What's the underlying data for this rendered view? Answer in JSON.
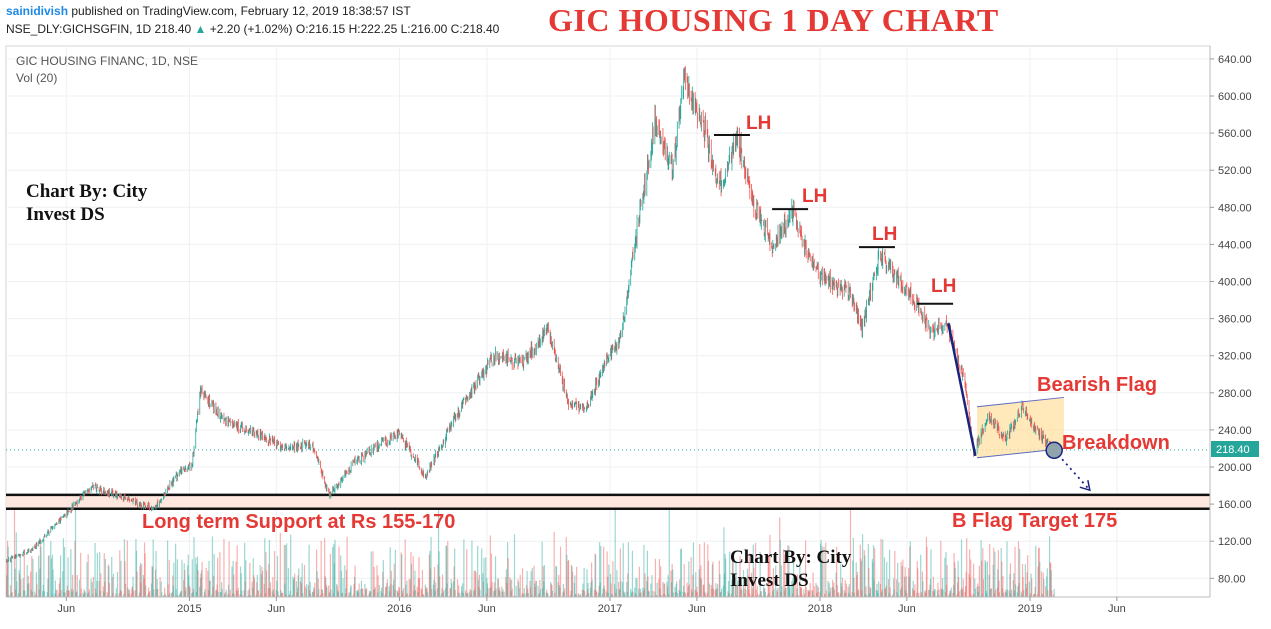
{
  "header": {
    "user": "sainidivish",
    "published_text": "published on TradingView.com, February 12, 2019 18:38:57 IST",
    "symbol": "NSE_DLY:GICHSGFIN, 1D",
    "last": "218.40",
    "change": "+2.20 (+1.02%)",
    "ohlc": "O:216.15 H:222.25 L:216.00 C:218.40"
  },
  "main_title": "GIC HOUSING 1 DAY CHART",
  "legend": {
    "instrument": "GIC HOUSING FINANC, 1D, NSE",
    "volume": "Vol (20)"
  },
  "last_price_label": "218.40",
  "annotations": {
    "credit_top_line1": "Chart By: City",
    "credit_top_line2": "Invest DS",
    "credit_bottom_line1": "Chart By: City",
    "credit_bottom_line2": "Invest DS",
    "lower_high": "LH",
    "bearish_flag": "Bearish Flag",
    "breakdown": "Breakdown",
    "support": "Long term Support at Rs 155-170",
    "target": "B Flag Target 175"
  },
  "colors": {
    "up": "#26a69a",
    "down": "#ef5350",
    "title": "#e53935",
    "annotation": "#e53935",
    "flag_fill": "#ffe0a3",
    "trend_line": "#1a237e"
  },
  "chart_data": {
    "type": "candlestick",
    "title": "GIC HOUSING 1 DAY CHART",
    "y_axis": {
      "position": "right",
      "ylim": [
        50,
        650
      ],
      "ticks": [
        "640.00",
        "600.00",
        "560.00",
        "520.00",
        "480.00",
        "440.00",
        "400.00",
        "360.00",
        "320.00",
        "280.00",
        "240.00",
        "200.00",
        "160.00",
        "120.00",
        "80.00"
      ]
    },
    "x_axis": {
      "ticks": [
        "Jun",
        "2015",
        "Jun",
        "2016",
        "Jun",
        "2017",
        "Jun",
        "2018",
        "Jun",
        "2019",
        "Jun"
      ],
      "tick_dates": [
        "2014-06-01",
        "2015-01-01",
        "2015-06-01",
        "2016-01-01",
        "2016-06-01",
        "2017-01-01",
        "2017-06-01",
        "2018-01-01",
        "2018-06-01",
        "2019-01-01",
        "2019-06-01"
      ]
    },
    "price_path": [
      [
        "2014-02-01",
        95
      ],
      [
        "2014-04-01",
        110
      ],
      [
        "2014-06-01",
        150
      ],
      [
        "2014-07-15",
        180
      ],
      [
        "2014-09-15",
        165
      ],
      [
        "2014-11-01",
        155
      ],
      [
        "2014-12-15",
        195
      ],
      [
        "2015-01-05",
        200
      ],
      [
        "2015-01-20",
        283
      ],
      [
        "2015-03-01",
        250
      ],
      [
        "2015-05-01",
        235
      ],
      [
        "2015-06-15",
        220
      ],
      [
        "2015-08-01",
        225
      ],
      [
        "2015-09-01",
        170
      ],
      [
        "2015-10-15",
        205
      ],
      [
        "2015-12-01",
        225
      ],
      [
        "2016-01-01",
        235
      ],
      [
        "2016-02-15",
        190
      ],
      [
        "2016-03-15",
        225
      ],
      [
        "2016-05-01",
        280
      ],
      [
        "2016-06-15",
        320
      ],
      [
        "2016-08-01",
        310
      ],
      [
        "2016-09-15",
        350
      ],
      [
        "2016-10-20",
        270
      ],
      [
        "2016-11-20",
        260
      ],
      [
        "2016-12-15",
        300
      ],
      [
        "2017-01-20",
        340
      ],
      [
        "2017-02-20",
        470
      ],
      [
        "2017-03-20",
        570
      ],
      [
        "2017-04-20",
        520
      ],
      [
        "2017-05-10",
        620
      ],
      [
        "2017-06-15",
        560
      ],
      [
        "2017-07-10",
        500
      ],
      [
        "2017-08-10",
        555
      ],
      [
        "2017-09-10",
        480
      ],
      [
        "2017-10-10",
        440
      ],
      [
        "2017-11-15",
        475
      ],
      [
        "2017-12-15",
        420
      ],
      [
        "2018-01-15",
        400
      ],
      [
        "2018-02-20",
        390
      ],
      [
        "2018-03-15",
        350
      ],
      [
        "2018-04-15",
        430
      ],
      [
        "2018-05-20",
        400
      ],
      [
        "2018-06-15",
        380
      ],
      [
        "2018-07-15",
        345
      ],
      [
        "2018-08-10",
        355
      ],
      [
        "2018-09-10",
        290
      ],
      [
        "2018-09-25",
        215
      ],
      [
        "2018-10-20",
        255
      ],
      [
        "2018-11-20",
        230
      ],
      [
        "2018-12-20",
        265
      ],
      [
        "2019-01-10",
        240
      ],
      [
        "2019-02-12",
        218.4
      ]
    ],
    "patterns": {
      "lower_highs": [
        {
          "date": "2017-08-01",
          "price": 558
        },
        {
          "date": "2017-11-10",
          "price": 478
        },
        {
          "date": "2018-04-10",
          "price": 437
        },
        {
          "date": "2018-07-20",
          "price": 376
        }
      ],
      "bearish_flag": {
        "start": "2018-10-01",
        "end": "2019-03-01",
        "upper": [
          265,
          275
        ],
        "lower": [
          210,
          220
        ]
      },
      "flag_pole": {
        "from": {
          "date": "2018-08-12",
          "price": 355
        },
        "to": {
          "date": "2018-09-28",
          "price": 212
        }
      },
      "projection": {
        "from": {
          "date": "2019-02-12",
          "price": 218
        },
        "to": {
          "date": "2019-04-15",
          "price": 175
        }
      },
      "support_zone": [
        155,
        170
      ]
    }
  }
}
